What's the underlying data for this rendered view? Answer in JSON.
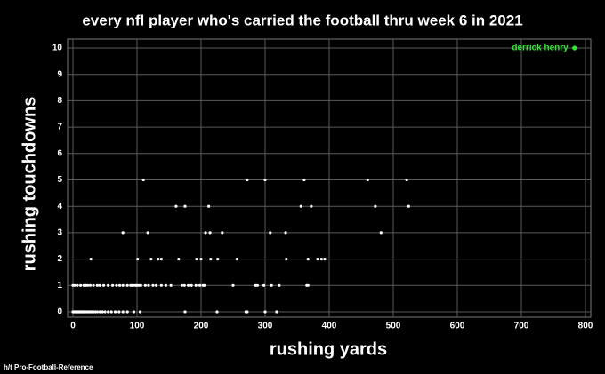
{
  "chart_data": {
    "type": "scatter",
    "title": "every nfl player who's carried the football thru week 6 in 2021",
    "x_label": "rushing yards",
    "y_label": "rushing touchdowns",
    "source": "h/t Pro-Football-Reference",
    "color": "#ffffff",
    "grid": true,
    "xlim": [
      0,
      800
    ],
    "ylim": [
      0,
      10
    ],
    "xticks": [
      0,
      100,
      200,
      300,
      400,
      500,
      600,
      700,
      800
    ],
    "yticks": [
      0,
      1,
      2,
      3,
      4,
      5,
      6,
      7,
      8,
      9,
      10
    ],
    "x": [
      0,
      1,
      2,
      3,
      4,
      5,
      6,
      7,
      8,
      9,
      10,
      11,
      12,
      13,
      14,
      15,
      16,
      17,
      18,
      19,
      20,
      22,
      24,
      26,
      28,
      30,
      32,
      35,
      38,
      42,
      46,
      50,
      55,
      60,
      66,
      72,
      78,
      85,
      95,
      105,
      175,
      225,
      270,
      272,
      300,
      318,
      0,
      3,
      7,
      12,
      17,
      20,
      23,
      27,
      32,
      38,
      42,
      48,
      55,
      62,
      68,
      73,
      78,
      85,
      90,
      92,
      95,
      98,
      100,
      103,
      106,
      113,
      118,
      125,
      130,
      138,
      145,
      153,
      170,
      174,
      180,
      185,
      192,
      198,
      203,
      205,
      250,
      285,
      288,
      298,
      310,
      322,
      365,
      367,
      28,
      101,
      122,
      133,
      138,
      165,
      193,
      200,
      215,
      226,
      256,
      333,
      367,
      382,
      388,
      393,
      78,
      117,
      207,
      214,
      233,
      308,
      332,
      481,
      161,
      175,
      212,
      356,
      372,
      472,
      524,
      110,
      272,
      300,
      361,
      460,
      521
    ],
    "values": [
      0,
      0,
      0,
      0,
      0,
      0,
      0,
      0,
      0,
      0,
      0,
      0,
      0,
      0,
      0,
      0,
      0,
      0,
      0,
      0,
      0,
      0,
      0,
      0,
      0,
      0,
      0,
      0,
      0,
      0,
      0,
      0,
      0,
      0,
      0,
      0,
      0,
      0,
      0,
      0,
      0,
      0,
      0,
      0,
      0,
      0,
      1,
      1,
      1,
      1,
      1,
      1,
      1,
      1,
      1,
      1,
      1,
      1,
      1,
      1,
      1,
      1,
      1,
      1,
      1,
      1,
      1,
      1,
      1,
      1,
      1,
      1,
      1,
      1,
      1,
      1,
      1,
      1,
      1,
      1,
      1,
      1,
      1,
      1,
      1,
      1,
      1,
      1,
      1,
      1,
      1,
      1,
      1,
      1,
      2,
      2,
      2,
      2,
      2,
      2,
      2,
      2,
      2,
      2,
      2,
      2,
      2,
      2,
      2,
      2,
      3,
      3,
      3,
      3,
      3,
      3,
      3,
      3,
      4,
      4,
      4,
      4,
      4,
      4,
      4,
      5,
      5,
      5,
      5,
      5,
      5
    ],
    "annotations": [
      {
        "text": "derrick henry",
        "x": 783,
        "y": 10,
        "color": "#2ee62e"
      }
    ]
  }
}
